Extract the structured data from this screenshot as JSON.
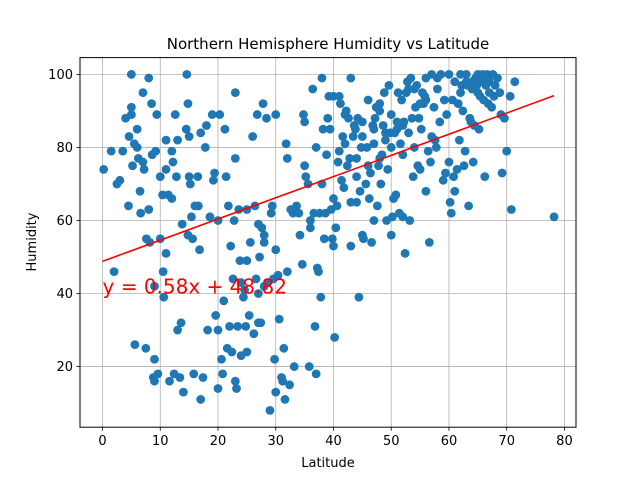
{
  "chart_data": {
    "type": "scatter",
    "title": "Northern Hemisphere Humidity vs Latitude",
    "xlabel": "Latitude",
    "ylabel": "Humidity",
    "xlim": [
      -3.9,
      82.0
    ],
    "ylim": [
      3.4,
      104.6
    ],
    "xticks": [
      0,
      10,
      20,
      30,
      40,
      50,
      60,
      70,
      80
    ],
    "yticks": [
      20,
      40,
      60,
      80,
      100
    ],
    "grid": true,
    "colors": {
      "points": "#1f77b4",
      "regression": "#ff0000",
      "annotation": "#ff0000"
    },
    "regression": {
      "slope": 0.58,
      "intercept": 48.82,
      "x_range": [
        0,
        78.2
      ],
      "annotation": "y = 0.58x + 48.82",
      "annotation_at": [
        0,
        40
      ]
    },
    "points": [
      [
        0.2,
        74
      ],
      [
        1.5,
        79
      ],
      [
        2,
        46
      ],
      [
        2.5,
        70
      ],
      [
        3,
        71
      ],
      [
        3.5,
        79
      ],
      [
        4,
        88
      ],
      [
        4.5,
        64
      ],
      [
        4.6,
        83
      ],
      [
        5,
        100
      ],
      [
        5,
        91
      ],
      [
        5,
        89
      ],
      [
        5.2,
        75
      ],
      [
        5.5,
        81
      ],
      [
        5.6,
        26
      ],
      [
        6,
        85
      ],
      [
        6,
        80
      ],
      [
        6.2,
        77
      ],
      [
        6.5,
        68
      ],
      [
        6.6,
        62
      ],
      [
        7,
        95
      ],
      [
        7,
        76
      ],
      [
        7.2,
        74
      ],
      [
        7.5,
        25
      ],
      [
        7.6,
        55
      ],
      [
        8,
        99
      ],
      [
        8,
        63
      ],
      [
        8.2,
        54
      ],
      [
        8.5,
        92
      ],
      [
        8.6,
        78
      ],
      [
        8.8,
        17
      ],
      [
        9,
        16
      ],
      [
        9,
        22
      ],
      [
        9,
        42
      ],
      [
        9.2,
        79
      ],
      [
        9.4,
        89
      ],
      [
        9.6,
        18
      ],
      [
        10,
        72
      ],
      [
        10,
        55
      ],
      [
        10.4,
        67
      ],
      [
        10.5,
        46
      ],
      [
        10.6,
        39
      ],
      [
        11,
        82
      ],
      [
        11,
        74
      ],
      [
        11,
        51
      ],
      [
        11.4,
        67
      ],
      [
        11.6,
        16
      ],
      [
        12,
        79
      ],
      [
        12,
        66
      ],
      [
        12.2,
        76
      ],
      [
        12.4,
        18
      ],
      [
        12.6,
        89
      ],
      [
        12.8,
        72
      ],
      [
        13,
        82
      ],
      [
        13,
        30
      ],
      [
        13.4,
        17
      ],
      [
        13.6,
        32
      ],
      [
        13.8,
        59
      ],
      [
        14,
        13
      ],
      [
        14.5,
        85
      ],
      [
        14.6,
        100
      ],
      [
        14.8,
        92
      ],
      [
        14.8,
        56
      ],
      [
        15,
        83
      ],
      [
        15,
        72
      ],
      [
        15.2,
        70
      ],
      [
        15.4,
        61
      ],
      [
        15.6,
        55
      ],
      [
        15.8,
        18
      ],
      [
        16,
        64
      ],
      [
        16.5,
        72
      ],
      [
        16.6,
        64
      ],
      [
        16.8,
        52
      ],
      [
        17,
        84
      ],
      [
        17,
        11
      ],
      [
        17.4,
        17
      ],
      [
        17.8,
        80
      ],
      [
        18,
        86
      ],
      [
        18.2,
        30
      ],
      [
        18.6,
        61
      ],
      [
        19,
        89
      ],
      [
        19.2,
        71
      ],
      [
        19.4,
        73
      ],
      [
        19.6,
        34
      ],
      [
        20,
        14
      ],
      [
        20,
        30
      ],
      [
        20,
        60
      ],
      [
        20.3,
        89
      ],
      [
        20.6,
        22
      ],
      [
        20.8,
        18
      ],
      [
        21,
        38
      ],
      [
        21.2,
        85
      ],
      [
        21.4,
        72
      ],
      [
        21.6,
        25
      ],
      [
        21.8,
        64
      ],
      [
        22,
        31
      ],
      [
        22.2,
        53
      ],
      [
        22.4,
        24
      ],
      [
        22.6,
        44
      ],
      [
        22.8,
        60
      ],
      [
        23,
        95
      ],
      [
        23,
        77
      ],
      [
        23,
        16
      ],
      [
        23.2,
        14
      ],
      [
        23.4,
        31
      ],
      [
        23.6,
        63
      ],
      [
        23.8,
        49
      ],
      [
        24,
        43
      ],
      [
        24,
        23
      ],
      [
        24.4,
        39
      ],
      [
        24.6,
        41
      ],
      [
        24.8,
        31
      ],
      [
        25,
        49
      ],
      [
        25,
        24
      ],
      [
        25,
        63
      ],
      [
        25.4,
        34
      ],
      [
        25.6,
        54
      ],
      [
        26,
        83
      ],
      [
        26.2,
        29
      ],
      [
        26.4,
        64
      ],
      [
        26.6,
        44
      ],
      [
        26.8,
        89
      ],
      [
        27,
        59
      ],
      [
        27,
        40
      ],
      [
        27,
        32
      ],
      [
        27.2,
        50
      ],
      [
        27.4,
        32
      ],
      [
        27.6,
        58
      ],
      [
        27.8,
        92
      ],
      [
        28,
        54
      ],
      [
        28,
        42
      ],
      [
        28,
        56
      ],
      [
        28.4,
        88
      ],
      [
        28.6,
        43
      ],
      [
        29,
        8
      ],
      [
        29.2,
        62
      ],
      [
        29.4,
        64
      ],
      [
        29.6,
        44
      ],
      [
        29.8,
        22
      ],
      [
        30,
        89
      ],
      [
        30,
        52
      ],
      [
        30,
        13
      ],
      [
        30.4,
        45
      ],
      [
        30.6,
        33
      ],
      [
        31,
        17
      ],
      [
        31.2,
        16
      ],
      [
        31.4,
        25
      ],
      [
        31.6,
        11
      ],
      [
        31.8,
        81
      ],
      [
        32,
        46
      ],
      [
        32,
        77
      ],
      [
        32.4,
        15
      ],
      [
        32.6,
        63
      ],
      [
        33,
        62
      ],
      [
        33.2,
        20
      ],
      [
        33.6,
        64
      ],
      [
        34,
        62
      ],
      [
        34.2,
        56
      ],
      [
        34.6,
        48
      ],
      [
        34.8,
        89
      ],
      [
        35,
        87
      ],
      [
        35,
        75
      ],
      [
        35.2,
        72
      ],
      [
        35.6,
        70
      ],
      [
        35.8,
        20
      ],
      [
        36,
        60
      ],
      [
        36,
        58
      ],
      [
        36.4,
        96
      ],
      [
        36.6,
        62
      ],
      [
        36.8,
        31
      ],
      [
        37,
        18
      ],
      [
        37,
        80
      ],
      [
        37.2,
        47
      ],
      [
        37.4,
        46
      ],
      [
        37.6,
        62
      ],
      [
        37.8,
        39
      ],
      [
        38,
        70
      ],
      [
        38,
        99
      ],
      [
        38.2,
        85
      ],
      [
        38.4,
        55
      ],
      [
        38.6,
        62
      ],
      [
        38.8,
        78
      ],
      [
        39,
        88
      ],
      [
        39.2,
        94
      ],
      [
        39.4,
        85
      ],
      [
        39.6,
        63
      ],
      [
        39.8,
        55
      ],
      [
        40,
        94
      ],
      [
        40,
        53
      ],
      [
        40,
        66
      ],
      [
        40.2,
        28
      ],
      [
        40.4,
        58
      ],
      [
        40.6,
        64
      ],
      [
        40.8,
        76
      ],
      [
        41,
        79
      ],
      [
        41,
        94
      ],
      [
        41.2,
        92
      ],
      [
        41.4,
        71
      ],
      [
        41.6,
        83
      ],
      [
        41.8,
        69
      ],
      [
        42,
        89
      ],
      [
        42,
        81
      ],
      [
        42.2,
        90
      ],
      [
        42.4,
        75
      ],
      [
        42.6,
        88
      ],
      [
        42.8,
        77
      ],
      [
        43,
        65
      ],
      [
        43,
        99
      ],
      [
        43,
        53
      ],
      [
        43.4,
        83
      ],
      [
        43.6,
        86
      ],
      [
        43.8,
        85
      ],
      [
        44,
        77
      ],
      [
        44,
        72
      ],
      [
        44,
        65
      ],
      [
        44.2,
        88
      ],
      [
        44.4,
        39
      ],
      [
        44.6,
        68
      ],
      [
        44.8,
        80
      ],
      [
        45,
        83
      ],
      [
        45,
        87
      ],
      [
        45,
        56
      ],
      [
        45.2,
        55
      ],
      [
        45.6,
        70
      ],
      [
        45.8,
        80
      ],
      [
        46,
        75
      ],
      [
        46,
        93
      ],
      [
        46.2,
        66
      ],
      [
        46.4,
        73
      ],
      [
        46.6,
        54
      ],
      [
        46.8,
        86
      ],
      [
        47,
        85
      ],
      [
        47,
        81
      ],
      [
        47,
        60
      ],
      [
        47.2,
        88
      ],
      [
        47.4,
        91
      ],
      [
        47.6,
        64
      ],
      [
        47.8,
        75
      ],
      [
        48,
        90
      ],
      [
        48,
        77
      ],
      [
        48,
        92
      ],
      [
        48.2,
        70
      ],
      [
        48.4,
        78
      ],
      [
        48.6,
        86
      ],
      [
        48.8,
        95
      ],
      [
        49,
        84
      ],
      [
        49,
        82
      ],
      [
        49.2,
        60
      ],
      [
        49.4,
        74
      ],
      [
        49.6,
        97
      ],
      [
        49.8,
        84
      ],
      [
        50,
        89
      ],
      [
        50,
        80
      ],
      [
        50,
        56
      ],
      [
        50.2,
        61
      ],
      [
        50.4,
        66
      ],
      [
        50.6,
        84
      ],
      [
        50.8,
        67
      ],
      [
        51,
        85
      ],
      [
        51,
        87
      ],
      [
        51.2,
        95
      ],
      [
        51.4,
        62
      ],
      [
        51.6,
        81
      ],
      [
        51.8,
        93
      ],
      [
        52,
        78
      ],
      [
        52,
        86
      ],
      [
        52,
        61
      ],
      [
        52.2,
        87
      ],
      [
        52.4,
        51
      ],
      [
        52.6,
        95
      ],
      [
        52.8,
        98
      ],
      [
        53,
        96
      ],
      [
        53,
        84
      ],
      [
        53.2,
        60
      ],
      [
        53.4,
        99
      ],
      [
        53.6,
        88
      ],
      [
        53.8,
        72
      ],
      [
        54,
        96
      ],
      [
        54,
        80
      ],
      [
        54.2,
        91
      ],
      [
        54.4,
        97
      ],
      [
        54.6,
        75
      ],
      [
        54.8,
        88
      ],
      [
        55,
        92
      ],
      [
        55,
        74
      ],
      [
        55.2,
        85
      ],
      [
        55.4,
        95
      ],
      [
        55.6,
        92
      ],
      [
        55.8,
        94
      ],
      [
        56,
        99
      ],
      [
        56,
        93
      ],
      [
        56,
        68
      ],
      [
        56.4,
        79
      ],
      [
        56.6,
        54
      ],
      [
        56.8,
        76
      ],
      [
        57,
        83
      ],
      [
        57,
        100
      ],
      [
        57.4,
        91
      ],
      [
        57.6,
        82
      ],
      [
        57.8,
        80
      ],
      [
        58,
        96
      ],
      [
        58,
        99
      ],
      [
        58.4,
        87
      ],
      [
        58.6,
        100
      ],
      [
        59,
        71
      ],
      [
        59.2,
        93
      ],
      [
        59.4,
        73
      ],
      [
        59.6,
        89
      ],
      [
        60,
        100
      ],
      [
        60,
        76
      ],
      [
        60.2,
        65
      ],
      [
        60.4,
        62
      ],
      [
        60.6,
        93
      ],
      [
        60.8,
        72
      ],
      [
        61,
        98
      ],
      [
        61,
        68
      ],
      [
        61.4,
        74
      ],
      [
        61.6,
        92
      ],
      [
        61.8,
        82
      ],
      [
        62,
        100
      ],
      [
        62,
        95
      ],
      [
        62.2,
        97
      ],
      [
        62.4,
        90
      ],
      [
        62.6,
        75
      ],
      [
        62.8,
        79
      ],
      [
        63,
        100
      ],
      [
        63,
        98
      ],
      [
        63.2,
        97
      ],
      [
        63.4,
        64
      ],
      [
        63.6,
        88
      ],
      [
        63.8,
        87
      ],
      [
        64,
        96
      ],
      [
        64,
        98
      ],
      [
        64.2,
        76
      ],
      [
        64.4,
        86
      ],
      [
        64.6,
        99
      ],
      [
        64.8,
        97
      ],
      [
        65,
        100
      ],
      [
        65,
        95
      ],
      [
        65.2,
        85
      ],
      [
        65.4,
        94
      ],
      [
        65.6,
        98
      ],
      [
        65.8,
        100
      ],
      [
        66,
        99
      ],
      [
        66,
        93
      ],
      [
        66.2,
        72
      ],
      [
        66.4,
        97
      ],
      [
        66.6,
        100
      ],
      [
        66.8,
        92
      ],
      [
        67,
        98
      ],
      [
        67,
        95
      ],
      [
        67.4,
        91
      ],
      [
        67.6,
        100
      ],
      [
        67.8,
        94
      ],
      [
        68,
        97
      ],
      [
        68.4,
        99
      ],
      [
        68.8,
        95
      ],
      [
        69,
        89
      ],
      [
        69.2,
        73
      ],
      [
        69.6,
        88
      ],
      [
        70,
        79
      ],
      [
        70.6,
        94
      ],
      [
        70.8,
        63
      ],
      [
        71.4,
        98
      ],
      [
        78.2,
        61
      ]
    ]
  }
}
